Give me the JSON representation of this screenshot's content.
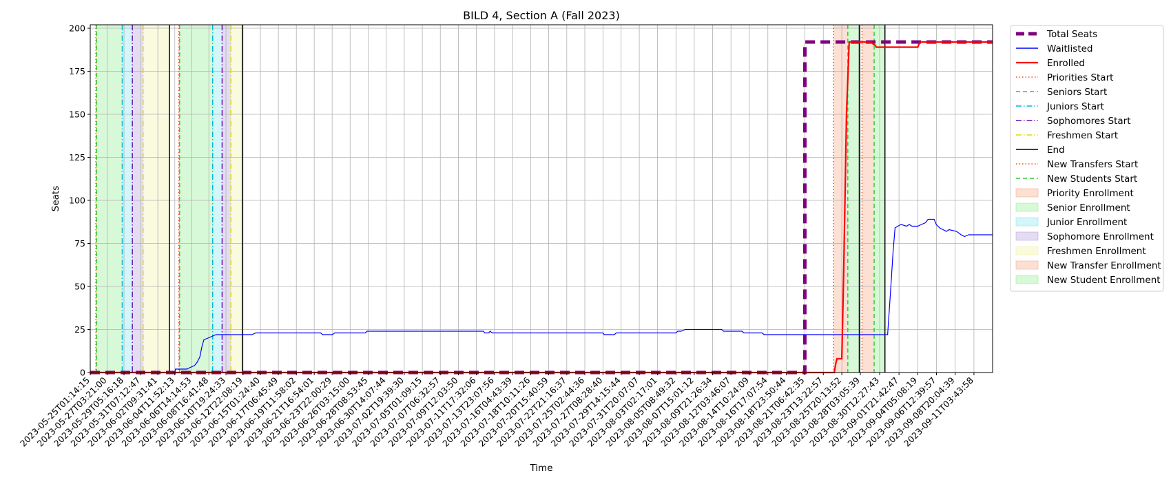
{
  "chart_data": {
    "type": "line",
    "title": "BILD 4, Section A (Fall 2023)",
    "xlabel": "Time",
    "ylabel": "Seats",
    "ylim": [
      0,
      202
    ],
    "y_ticks": [
      0,
      25,
      50,
      75,
      100,
      125,
      150,
      175,
      200
    ],
    "grid": true,
    "legend_position": "outside-right",
    "x_start": "2023-05-25T01:14:15",
    "x_end": "2023-09-13T11:00:00",
    "x_ticks": [
      "2023-05-25T01:14:15",
      "2023-05-27T03:21:00",
      "2023-05-29T05:16:18",
      "2023-05-31T07:12:47",
      "2023-06-02T09:31:41",
      "2023-06-04T11:52:13",
      "2023-06-06T14:14:53",
      "2023-06-08T16:41:48",
      "2023-06-10T19:24:33",
      "2023-06-12T22:08:19",
      "2023-06-15T01:24:40",
      "2023-06-17T06:45:49",
      "2023-06-19T11:58:02",
      "2023-06-21T16:54:01",
      "2023-06-23T22:00:29",
      "2023-06-26T03:15:00",
      "2023-06-28T08:53:45",
      "2023-06-30T14:07:44",
      "2023-07-02T19:39:30",
      "2023-07-05T01:09:15",
      "2023-07-07T06:32:57",
      "2023-07-09T12:03:50",
      "2023-07-11T17:32:06",
      "2023-07-13T23:07:56",
      "2023-07-16T04:43:39",
      "2023-07-18T10:11:26",
      "2023-07-20T15:40:59",
      "2023-07-22T21:16:37",
      "2023-07-25T02:44:36",
      "2023-07-27T08:28:40",
      "2023-07-29T14:15:44",
      "2023-07-31T20:07:07",
      "2023-08-03T02:17:01",
      "2023-08-05T08:49:32",
      "2023-08-07T15:01:12",
      "2023-08-09T21:26:34",
      "2023-08-12T03:46:07",
      "2023-08-14T10:24:09",
      "2023-08-16T17:07:54",
      "2023-08-18T23:50:44",
      "2023-08-21T06:42:35",
      "2023-08-23T13:22:57",
      "2023-08-25T20:13:52",
      "2023-08-28T03:05:39",
      "2023-08-30T12:27:43",
      "2023-09-01T21:42:47",
      "2023-09-04T05:08:19",
      "2023-09-06T12:39:57",
      "2023-09-08T20:04:39",
      "2023-09-11T03:43:58"
    ],
    "series": [
      {
        "name": "Total Seats",
        "color": "#800080",
        "style": "dashed-thick",
        "points": [
          [
            "2023-05-25T01:14:15",
            0
          ],
          [
            "2023-08-21T06:42:35",
            0
          ],
          [
            "2023-08-21T06:50:00",
            192
          ],
          [
            "2023-09-13T11:00:00",
            192
          ]
        ]
      },
      {
        "name": "Waitlisted",
        "color": "#0000ff",
        "style": "solid",
        "points": [
          [
            "2023-06-04T11:52:13",
            0
          ],
          [
            "2023-06-04T14:00:00",
            2
          ],
          [
            "2023-06-06T00:00:00",
            2
          ],
          [
            "2023-06-06T10:00:00",
            3
          ],
          [
            "2023-06-06T22:00:00",
            4
          ],
          [
            "2023-06-07T06:00:00",
            6
          ],
          [
            "2023-06-07T14:00:00",
            9
          ],
          [
            "2023-06-07T20:00:00",
            15
          ],
          [
            "2023-06-08T02:00:00",
            19
          ],
          [
            "2023-06-08T14:00:00",
            20
          ],
          [
            "2023-06-09T02:00:00",
            21
          ],
          [
            "2023-06-09T14:00:00",
            22
          ],
          [
            "2023-06-10T08:00:00",
            22
          ],
          [
            "2023-06-14T00:00:00",
            22
          ],
          [
            "2023-06-14T12:00:00",
            23
          ],
          [
            "2023-06-22T12:00:00",
            23
          ],
          [
            "2023-06-22T18:00:00",
            22
          ],
          [
            "2023-06-23T22:00:29",
            22
          ],
          [
            "2023-06-24T06:00:00",
            23
          ],
          [
            "2023-06-28T00:00:00",
            23
          ],
          [
            "2023-06-28T06:00:00",
            24
          ],
          [
            "2023-06-30T00:00:00",
            24
          ],
          [
            "2023-06-30T06:00:00",
            24
          ],
          [
            "2023-07-12T14:00:00",
            24
          ],
          [
            "2023-07-12T18:00:00",
            23
          ],
          [
            "2023-07-13T06:00:00",
            23
          ],
          [
            "2023-07-13T10:00:00",
            24
          ],
          [
            "2023-07-13T16:00:00",
            23
          ],
          [
            "2023-07-27T08:28:40",
            23
          ],
          [
            "2023-07-27T12:00:00",
            22
          ],
          [
            "2023-07-28T18:00:00",
            22
          ],
          [
            "2023-07-29T00:00:00",
            23
          ],
          [
            "2023-08-05T08:49:32",
            23
          ],
          [
            "2023-08-05T14:00:00",
            24
          ],
          [
            "2023-08-06T00:00:00",
            24
          ],
          [
            "2023-08-06T12:00:00",
            25
          ],
          [
            "2023-08-11T00:00:00",
            25
          ],
          [
            "2023-08-11T06:00:00",
            24
          ],
          [
            "2023-08-13T12:00:00",
            24
          ],
          [
            "2023-08-13T18:00:00",
            23
          ],
          [
            "2023-08-16T00:00:00",
            23
          ],
          [
            "2023-08-16T06:00:00",
            22
          ],
          [
            "2023-08-31T12:00:00",
            22
          ],
          [
            "2023-08-31T20:00:00",
            45
          ],
          [
            "2023-09-01T04:00:00",
            70
          ],
          [
            "2023-09-01T10:00:00",
            84
          ],
          [
            "2023-09-01T18:00:00",
            85
          ],
          [
            "2023-09-02T04:00:00",
            86
          ],
          [
            "2023-09-02T20:00:00",
            85
          ],
          [
            "2023-09-03T04:00:00",
            86
          ],
          [
            "2023-09-03T12:00:00",
            85
          ],
          [
            "2023-09-04T05:08:19",
            85
          ],
          [
            "2023-09-04T16:00:00",
            86
          ],
          [
            "2023-09-05T04:00:00",
            87
          ],
          [
            "2023-09-05T12:00:00",
            89
          ],
          [
            "2023-09-06T06:00:00",
            89
          ],
          [
            "2023-09-06T12:00:00",
            86
          ],
          [
            "2023-09-06T22:00:00",
            84
          ],
          [
            "2023-09-07T08:00:00",
            83
          ],
          [
            "2023-09-07T18:00:00",
            82
          ],
          [
            "2023-09-08T02:00:00",
            83
          ],
          [
            "2023-09-09T00:00:00",
            82
          ],
          [
            "2023-09-09T14:00:00",
            80
          ],
          [
            "2023-09-10T00:00:00",
            79
          ],
          [
            "2023-09-10T12:00:00",
            80
          ],
          [
            "2023-09-13T11:00:00",
            80
          ]
        ]
      },
      {
        "name": "Enrolled",
        "color": "#ff0000",
        "style": "solid-thick",
        "points": [
          [
            "2023-05-25T01:14:15",
            0
          ],
          [
            "2023-08-24T22:00:00",
            0
          ],
          [
            "2023-08-25T02:00:00",
            5
          ],
          [
            "2023-08-25T06:00:00",
            8
          ],
          [
            "2023-08-25T20:13:52",
            8
          ],
          [
            "2023-08-26T02:00:00",
            60
          ],
          [
            "2023-08-26T10:00:00",
            150
          ],
          [
            "2023-08-26T18:00:00",
            192
          ],
          [
            "2023-08-29T10:00:00",
            192
          ],
          [
            "2023-08-29T16:00:00",
            191
          ],
          [
            "2023-08-30T00:00:00",
            190
          ],
          [
            "2023-08-30T02:00:00",
            189
          ],
          [
            "2023-09-04T05:08:19",
            189
          ],
          [
            "2023-09-04T12:00:00",
            192
          ],
          [
            "2023-09-13T11:00:00",
            192
          ]
        ]
      }
    ],
    "markers": [
      {
        "name": "Priorities Start",
        "color": "#ff4500",
        "style": "dotted",
        "times": [
          "2023-05-25T18:00:00",
          "2023-06-05T00:00:00",
          "2023-08-24T20:00:00"
        ]
      },
      {
        "name": "Seniors Start",
        "color": "#32cd32",
        "style": "dashed",
        "times": [
          "2023-05-25T20:00:00",
          "2023-06-05T02:00:00"
        ]
      },
      {
        "name": "Juniors Start",
        "color": "#00bcd4",
        "style": "dashdot",
        "times": [
          "2023-05-29T00:00:00",
          "2023-06-09T04:00:00"
        ]
      },
      {
        "name": "Sophomores Start",
        "color": "#6a0dad",
        "style": "dashdot",
        "times": [
          "2023-05-30T06:00:00",
          "2023-06-10T08:00:00"
        ]
      },
      {
        "name": "Freshmen Start",
        "color": "#dddd00",
        "style": "dashdot",
        "times": [
          "2023-05-31T14:00:00",
          "2023-06-11T10:00:00"
        ]
      },
      {
        "name": "End",
        "color": "#000000",
        "style": "solid",
        "times": [
          "2023-06-03T20:00:00",
          "2023-06-12T20:00:00",
          "2023-08-28T00:00:00",
          "2023-08-31T04:00:00"
        ]
      },
      {
        "name": "New Transfers Start",
        "color": "#ff4500",
        "style": "dotted",
        "times": [
          "2023-08-28T08:00:00"
        ]
      },
      {
        "name": "New Students Start",
        "color": "#32cd32",
        "style": "dashed",
        "times": [
          "2023-08-26T14:00:00",
          "2023-08-29T20:00:00"
        ]
      }
    ],
    "spans": [
      {
        "name": "Priority Enrollment",
        "color": "#f4a582",
        "ranges": [
          [
            "2023-05-25T18:00:00",
            "2023-05-25T20:00:00"
          ],
          [
            "2023-06-05T00:00:00",
            "2023-06-05T02:00:00"
          ],
          [
            "2023-08-24T20:00:00",
            "2023-08-26T14:00:00"
          ]
        ]
      },
      {
        "name": "Senior Enrollment",
        "color": "#90ee90",
        "ranges": [
          [
            "2023-05-25T20:00:00",
            "2023-05-29T00:00:00"
          ],
          [
            "2023-06-05T02:00:00",
            "2023-06-09T04:00:00"
          ],
          [
            "2023-08-26T14:00:00",
            "2023-08-28T00:00:00"
          ]
        ]
      },
      {
        "name": "Junior Enrollment",
        "color": "#7fe5f0",
        "ranges": [
          [
            "2023-05-29T00:00:00",
            "2023-05-30T06:00:00"
          ],
          [
            "2023-06-09T04:00:00",
            "2023-06-10T08:00:00"
          ]
        ]
      },
      {
        "name": "Sophomore Enrollment",
        "color": "#b19cd9",
        "ranges": [
          [
            "2023-05-30T06:00:00",
            "2023-05-31T14:00:00"
          ],
          [
            "2023-06-10T08:00:00",
            "2023-06-11T10:00:00"
          ]
        ]
      },
      {
        "name": "Freshmen Enrollment",
        "color": "#f0f0a0",
        "ranges": [
          [
            "2023-05-31T14:00:00",
            "2023-06-03T20:00:00"
          ],
          [
            "2023-06-11T10:00:00",
            "2023-06-12T20:00:00"
          ]
        ]
      },
      {
        "name": "New Transfer Enrollment",
        "color": "#f4a582",
        "ranges": [
          [
            "2023-08-28T08:00:00",
            "2023-08-29T20:00:00"
          ]
        ]
      },
      {
        "name": "New Student Enrollment",
        "color": "#90ee90",
        "ranges": [
          [
            "2023-08-29T20:00:00",
            "2023-08-31T04:00:00"
          ]
        ]
      }
    ]
  }
}
